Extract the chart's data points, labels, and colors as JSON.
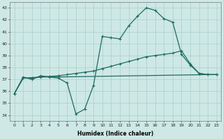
{
  "xlabel": "Humidex (Indice chaleur)",
  "background_color": "#cde8e5",
  "grid_color": "#aacfcc",
  "line_color": "#1e6b62",
  "xlim": [
    -0.5,
    23.5
  ],
  "ylim": [
    33.5,
    43.5
  ],
  "yticks": [
    34,
    35,
    36,
    37,
    38,
    39,
    40,
    41,
    42,
    43
  ],
  "xticks": [
    0,
    1,
    2,
    3,
    4,
    5,
    6,
    7,
    8,
    9,
    10,
    11,
    12,
    13,
    14,
    15,
    16,
    17,
    18,
    19,
    20,
    21,
    22,
    23
  ],
  "line1_x": [
    0,
    1,
    2,
    3,
    4,
    5,
    6,
    7,
    8,
    9,
    10,
    11,
    12,
    13,
    14,
    15,
    16,
    17,
    18,
    19,
    20,
    21,
    22,
    23
  ],
  "line1_y": [
    35.8,
    37.2,
    37.0,
    37.3,
    37.2,
    37.1,
    36.7,
    34.1,
    34.5,
    36.5,
    40.6,
    40.5,
    40.4,
    41.5,
    42.3,
    43.0,
    42.8,
    42.1,
    41.8,
    39.1,
    38.2,
    37.5,
    37.4,
    37.4
  ],
  "line2_x": [
    0,
    1,
    2,
    3,
    4,
    5,
    22,
    23
  ],
  "line2_y": [
    35.8,
    37.1,
    37.1,
    37.2,
    37.2,
    37.2,
    37.4,
    37.4
  ],
  "line3_x": [
    0,
    1,
    2,
    3,
    4,
    5,
    6,
    7,
    8,
    9,
    10,
    11,
    12,
    13,
    14,
    15,
    16,
    17,
    18,
    19,
    20,
    21,
    22,
    23
  ],
  "line3_y": [
    35.8,
    37.1,
    37.15,
    37.2,
    37.25,
    37.3,
    37.4,
    37.5,
    37.6,
    37.7,
    37.9,
    38.1,
    38.3,
    38.5,
    38.7,
    38.9,
    39.0,
    39.1,
    39.2,
    39.4,
    38.3,
    37.5,
    37.4,
    37.4
  ]
}
